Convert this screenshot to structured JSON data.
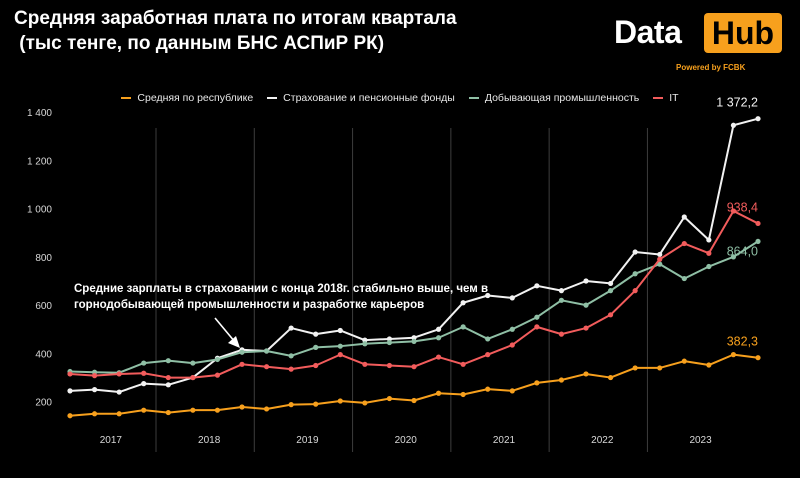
{
  "title_line1": "Средняя заработная плата по итогам квартала",
  "title_line2": " (тыс тенге, по данным БНС АСПиР РК)",
  "logo": {
    "left": "Data",
    "right": "Hub",
    "powered": "Powered by FCBK",
    "accent": "#f7a01d"
  },
  "chart_data": {
    "type": "line",
    "title": "Средняя заработная плата по итогам квартала (тыс тенге, по данным БНС АСПиР РК)",
    "xlabel": "",
    "ylabel": "",
    "ylim": [
      0,
      1400
    ],
    "yticks": [
      200,
      400,
      600,
      800,
      1000,
      1200,
      1400
    ],
    "ytick_labels": [
      "200",
      "400",
      "600",
      "800",
      "1 000",
      "1 200",
      "1 400"
    ],
    "years": [
      "2017",
      "2018",
      "2019",
      "2020",
      "2021",
      "2022",
      "2023"
    ],
    "quarters_per_year": 4,
    "legend_position": "top-center",
    "series": [
      {
        "name": "Средняя по республике",
        "color": "#f7a01d",
        "values": [
          142,
          150,
          150,
          165,
          155,
          165,
          165,
          178,
          170,
          188,
          190,
          203,
          195,
          213,
          205,
          235,
          230,
          252,
          245,
          278,
          290,
          315,
          300,
          340,
          340,
          368,
          352,
          395,
          382.3
        ],
        "end_label": "382,3"
      },
      {
        "name": "Страхование и пенсионные фонды",
        "color": "#f2f2f2",
        "values": [
          245,
          250,
          240,
          275,
          270,
          300,
          380,
          415,
          410,
          505,
          480,
          495,
          455,
          460,
          465,
          500,
          610,
          640,
          630,
          680,
          660,
          700,
          690,
          820,
          810,
          965,
          870,
          1345,
          1372.2
        ],
        "end_label": "1 372,2"
      },
      {
        "name": "Добывающая промышленность",
        "color": "#8fbfa5",
        "values": [
          325,
          322,
          320,
          360,
          370,
          360,
          375,
          405,
          410,
          390,
          425,
          430,
          440,
          445,
          450,
          465,
          510,
          460,
          500,
          550,
          620,
          600,
          660,
          730,
          770,
          710,
          760,
          800,
          864.0
        ],
        "end_label": "864,0"
      },
      {
        "name": "IT",
        "color": "#f25c5c",
        "values": [
          315,
          308,
          315,
          318,
          300,
          300,
          310,
          355,
          345,
          335,
          350,
          395,
          355,
          350,
          345,
          385,
          355,
          395,
          435,
          510,
          480,
          505,
          560,
          660,
          790,
          855,
          815,
          990,
          938.4
        ],
        "end_label": "938,4"
      }
    ],
    "annotation": {
      "line1": "Средние зарплаты в страховании с конца 2018г. стабильно выше, чем в",
      "line2": "горнодобывающей промышленности и разработке карьеров"
    }
  }
}
